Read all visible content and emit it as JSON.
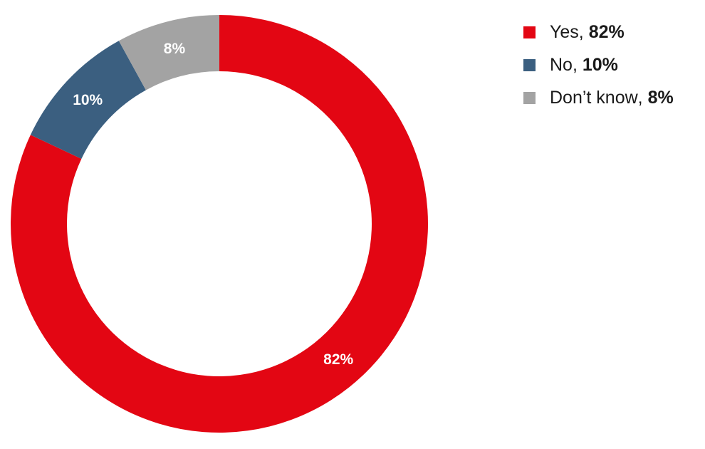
{
  "chart_data": {
    "type": "pie",
    "variant": "donut",
    "slices": [
      {
        "label": "Yes",
        "value": 82,
        "value_text": "82%",
        "color": "#e30613"
      },
      {
        "label": "No",
        "value": 10,
        "value_text": "10%",
        "color": "#3b5f80"
      },
      {
        "label": "Don’t know",
        "value": 8,
        "value_text": "8%",
        "color": "#a3a3a3"
      }
    ],
    "legend_position": "top-right",
    "start_direction": "top",
    "direction": "clockwise"
  }
}
